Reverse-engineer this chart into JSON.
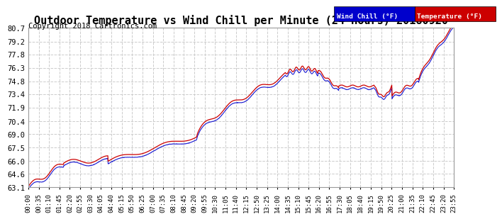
{
  "title": "Outdoor Temperature vs Wind Chill per Minute (24 Hours) 20180920",
  "copyright": "Copyright 2018 Cartronics.com",
  "legend_labels": [
    "Wind Chill (°F)",
    "Temperature (°F)"
  ],
  "legend_colors": [
    "#0000cc",
    "#cc0000"
  ],
  "line_color": "#cc0000",
  "wind_chill_color": "#0000cc",
  "ylim": [
    63.1,
    80.7
  ],
  "yticks": [
    63.1,
    64.6,
    66.0,
    67.5,
    69.0,
    70.4,
    71.9,
    73.4,
    74.8,
    76.3,
    77.8,
    79.2,
    80.7
  ],
  "xtick_labels": [
    "00:00",
    "00:35",
    "01:10",
    "01:45",
    "02:20",
    "02:55",
    "03:30",
    "04:05",
    "04:40",
    "05:15",
    "05:50",
    "06:25",
    "07:00",
    "07:35",
    "08:10",
    "08:45",
    "09:20",
    "09:55",
    "10:30",
    "11:05",
    "11:40",
    "12:15",
    "12:50",
    "13:25",
    "14:00",
    "14:35",
    "15:10",
    "15:45",
    "16:20",
    "16:55",
    "17:30",
    "18:05",
    "18:40",
    "19:15",
    "19:50",
    "20:25",
    "21:00",
    "21:35",
    "22:10",
    "22:45",
    "23:20",
    "23:55"
  ],
  "background_color": "#ffffff",
  "grid_color": "#cccccc",
  "plot_bg_color": "#ffffff",
  "title_fontsize": 11,
  "copyright_fontsize": 7.5
}
